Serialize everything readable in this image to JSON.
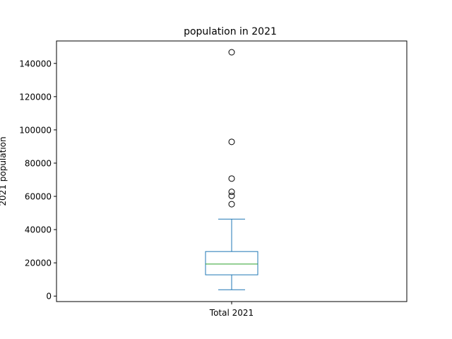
{
  "chart_data": {
    "type": "box",
    "title": "population in 2021",
    "ylabel": "2021 population",
    "xlabel": "",
    "categories": [
      "Total 2021"
    ],
    "ylim": [
      -3300,
      153500
    ],
    "yticks": [
      0,
      20000,
      40000,
      60000,
      80000,
      100000,
      120000,
      140000
    ],
    "ytick_labels": [
      "0",
      "20000",
      "40000",
      "60000",
      "80000",
      "100000",
      "120000",
      "140000"
    ],
    "grid": false,
    "boxes": [
      {
        "name": "Total 2021",
        "whisker_low": 3800,
        "q1": 12800,
        "median": 19300,
        "q3": 26800,
        "whisker_high": 46300,
        "outliers": [
          55300,
          60300,
          62700,
          70700,
          92800,
          146700
        ]
      }
    ],
    "colors": {
      "box": "#1f77b4",
      "median": "#2ca02c",
      "outlier_edge": "#000000",
      "axes": "#000000"
    }
  }
}
